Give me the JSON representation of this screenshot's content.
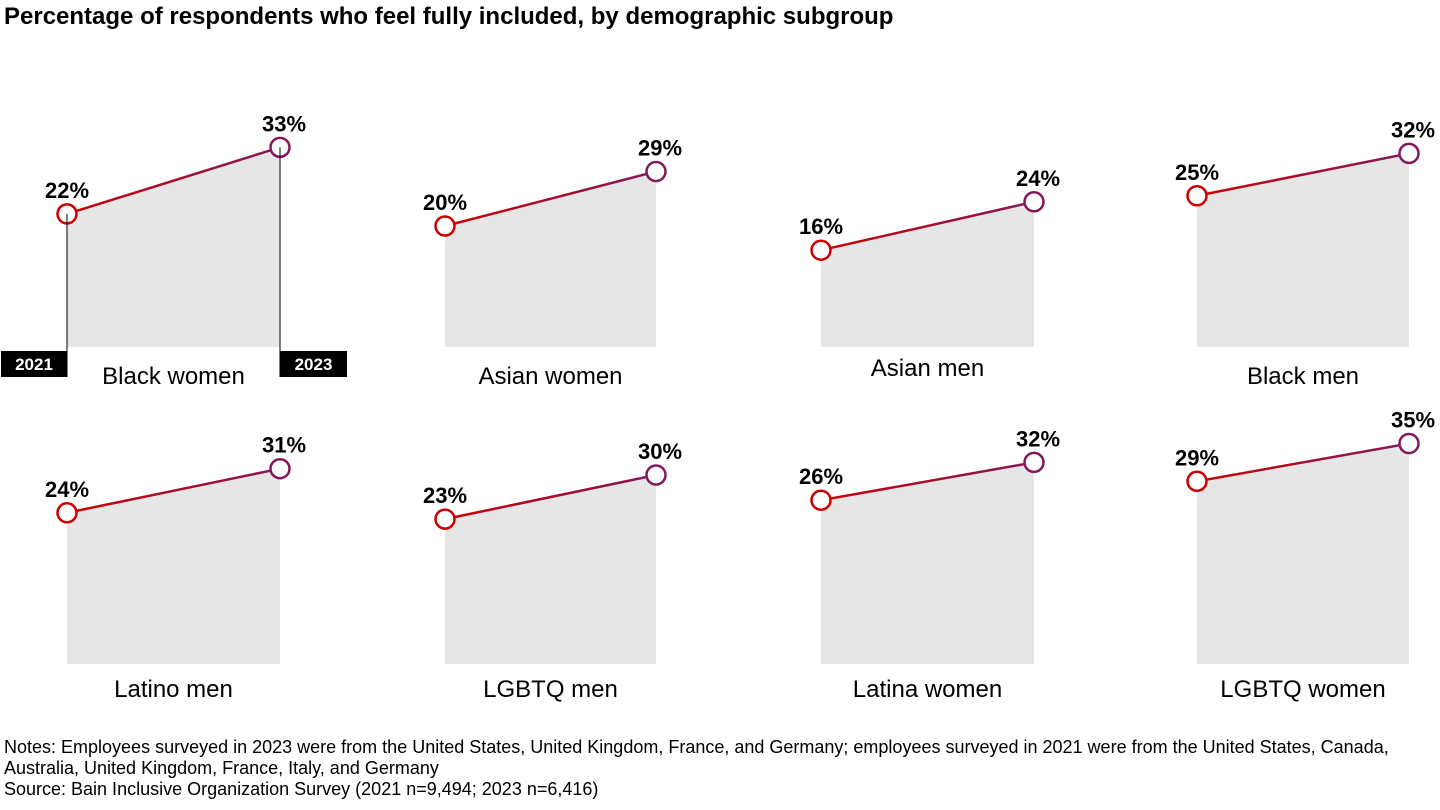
{
  "title": "Percentage of respondents who feel fully included, by demographic subgroup",
  "chart_data": {
    "type": "area",
    "title": "Percentage of respondents who feel fully included, by demographic subgroup",
    "x": [
      "2021",
      "2023"
    ],
    "unit": "%",
    "panels": [
      {
        "name": "Black women",
        "values": [
          22,
          33
        ],
        "labels": [
          "22%",
          "33%"
        ]
      },
      {
        "name": "Asian women",
        "values": [
          20,
          29
        ],
        "labels": [
          "20%",
          "29%"
        ]
      },
      {
        "name": "Asian men",
        "values": [
          16,
          24
        ],
        "labels": [
          "16%",
          "24%"
        ]
      },
      {
        "name": "Black men",
        "values": [
          25,
          32
        ],
        "labels": [
          "25%",
          "32%"
        ]
      },
      {
        "name": "Latino men",
        "values": [
          24,
          31
        ],
        "labels": [
          "24%",
          "31%"
        ]
      },
      {
        "name": "LGBTQ men",
        "values": [
          23,
          30
        ],
        "labels": [
          "23%",
          "30%"
        ]
      },
      {
        "name": "Latina women",
        "values": [
          26,
          32
        ],
        "labels": [
          "26%",
          "32%"
        ]
      },
      {
        "name": "LGBTQ women",
        "values": [
          29,
          35
        ],
        "labels": [
          "29%",
          "35%"
        ]
      }
    ],
    "colors": {
      "area": "#e6e6e6",
      "start": "#cc0000",
      "end": "#82195a",
      "year_tag": "#000000"
    }
  },
  "notes": {
    "line1": "Notes: Employees surveyed in 2023 were from the United States, United Kingdom, France, and Germany; employees surveyed in 2021 were from the United States, Canada, Australia, United Kingdom, France, Italy, and Germany",
    "source": "Source: Bain Inclusive Organization Survey (2021 n=9,494; 2023 n=6,416)"
  }
}
